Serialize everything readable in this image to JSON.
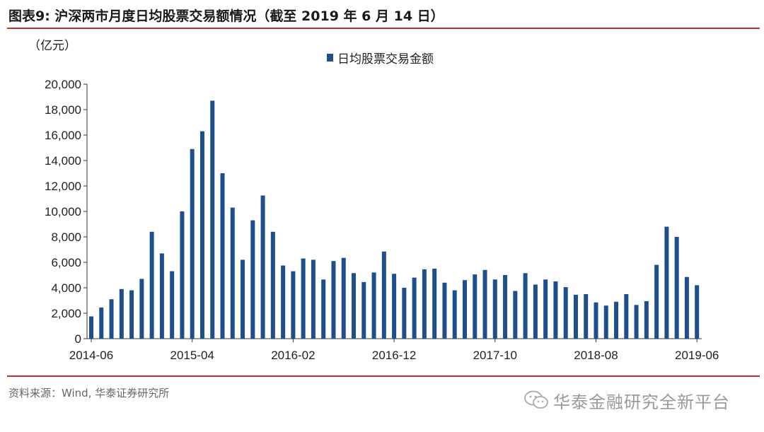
{
  "figure": {
    "title": "图表9: 沪深两市月度日均股票交易额情况（截至 2019 年 6 月 14 日）",
    "unit": "（亿元）",
    "source": "资料来源：Wind, 华泰证券研究所",
    "brand": "华泰金融研究全新平台",
    "brand_logo_icon": "wechat-logo-icon"
  },
  "colors": {
    "bar": "#1f4e8c",
    "rule": "#c0302b",
    "axis": "#333333"
  },
  "chart_data": {
    "type": "bar",
    "title": "",
    "xlabel": "",
    "ylabel": "（亿元）",
    "legend": {
      "label": "日均股票交易金额",
      "placement": "top-center"
    },
    "series": [
      {
        "name": "日均股票交易金额"
      }
    ],
    "ylim": [
      0,
      20000
    ],
    "yticks": [
      0,
      2000,
      4000,
      6000,
      8000,
      10000,
      12000,
      14000,
      16000,
      18000,
      20000
    ],
    "ytick_labels": [
      "0",
      "2,000",
      "4,000",
      "6,000",
      "8,000",
      "10,000",
      "12,000",
      "14,000",
      "16,000",
      "18,000",
      "20,000"
    ],
    "xtick_labels": [
      "2014-06",
      "2015-04",
      "2016-02",
      "2016-12",
      "2017-10",
      "2018-08",
      "2019-06"
    ],
    "grid": false,
    "categories": [
      "2014-06",
      "2014-07",
      "2014-08",
      "2014-09",
      "2014-10",
      "2014-11",
      "2014-12",
      "2015-01",
      "2015-02",
      "2015-03",
      "2015-04",
      "2015-05",
      "2015-06",
      "2015-07",
      "2015-08",
      "2015-09",
      "2015-10",
      "2015-11",
      "2015-12",
      "2016-01",
      "2016-02",
      "2016-03",
      "2016-04",
      "2016-05",
      "2016-06",
      "2016-07",
      "2016-08",
      "2016-09",
      "2016-10",
      "2016-11",
      "2016-12",
      "2017-01",
      "2017-02",
      "2017-03",
      "2017-04",
      "2017-05",
      "2017-06",
      "2017-07",
      "2017-08",
      "2017-09",
      "2017-10",
      "2017-11",
      "2017-12",
      "2018-01",
      "2018-02",
      "2018-03",
      "2018-04",
      "2018-05",
      "2018-06",
      "2018-07",
      "2018-08",
      "2018-09",
      "2018-10",
      "2018-11",
      "2018-12",
      "2019-01",
      "2019-02",
      "2019-03",
      "2019-04",
      "2019-05",
      "2019-06"
    ],
    "values": [
      1750,
      2450,
      3100,
      3900,
      3800,
      4700,
      8400,
      6700,
      5300,
      10000,
      14900,
      16300,
      18700,
      13000,
      10300,
      6200,
      9300,
      11250,
      8400,
      5750,
      5300,
      6300,
      6200,
      4650,
      6100,
      6350,
      5150,
      4450,
      5200,
      6850,
      5100,
      4000,
      4800,
      5450,
      5500,
      4400,
      3800,
      4600,
      5050,
      5400,
      4650,
      5000,
      3750,
      5150,
      4250,
      4650,
      4500,
      4050,
      3450,
      3500,
      2850,
      2600,
      2900,
      3500,
      2650,
      2950,
      5800,
      8800,
      8000,
      4850,
      4200
    ]
  }
}
